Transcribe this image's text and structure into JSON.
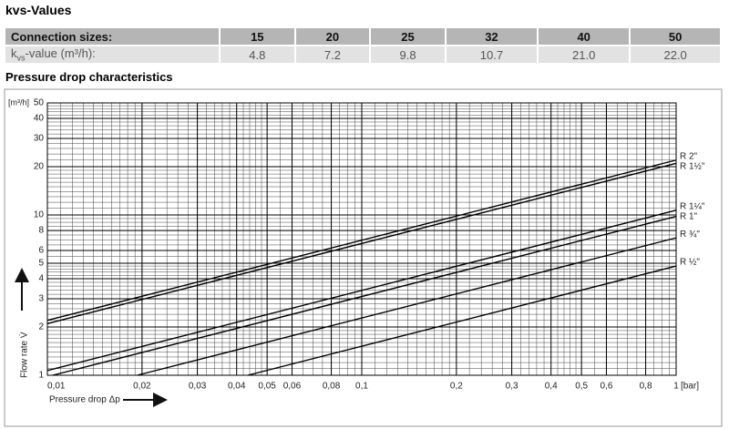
{
  "title": "kvs-Values",
  "table": {
    "header": [
      "Connection sizes:",
      "15",
      "20",
      "25",
      "32",
      "40",
      "50"
    ],
    "rows": [
      [
        [
          "k",
          "vs",
          "-value (m³/h):"
        ],
        "4.8",
        "7.2",
        "9.8",
        "10.7",
        "21.0",
        "22.0"
      ]
    ]
  },
  "section_title": "Pressure drop characteristics",
  "chart_data": {
    "type": "line",
    "x_label": "Pressure drop Δp",
    "y_label": "Flow rate V̇",
    "x_unit": "[bar]",
    "y_unit": "[m³/h]",
    "xscale": "log",
    "yscale": "log",
    "xlim": [
      0.01,
      1
    ],
    "ylim": [
      1,
      50
    ],
    "xticks": [
      {
        "value": 0.01,
        "label": "0,01"
      },
      {
        "value": 0.02,
        "label": "0,02"
      },
      {
        "value": 0.03,
        "label": "0,03"
      },
      {
        "value": 0.04,
        "label": "0,04"
      },
      {
        "value": 0.05,
        "label": "0,05"
      },
      {
        "value": 0.06,
        "label": "0,06"
      },
      {
        "value": 0.08,
        "label": "0,08"
      },
      {
        "value": 0.1,
        "label": "0,1"
      },
      {
        "value": 0.2,
        "label": "0,2"
      },
      {
        "value": 0.3,
        "label": "0,3"
      },
      {
        "value": 0.4,
        "label": "0,4"
      },
      {
        "value": 0.5,
        "label": "0,5"
      },
      {
        "value": 0.6,
        "label": "0,6"
      },
      {
        "value": 0.8,
        "label": "0,8"
      },
      1
    ],
    "yticks": [
      1,
      2,
      3,
      4,
      5,
      6,
      8,
      10,
      20,
      30,
      40,
      50
    ],
    "grid": true,
    "series": [
      {
        "name": "R 2\"",
        "color": "#000000",
        "x": [
          0.01,
          1
        ],
        "values": [
          2.2,
          22
        ]
      },
      {
        "name": "R 1½\"",
        "color": "#000000",
        "x": [
          0.01,
          1
        ],
        "values": [
          2.1,
          21
        ]
      },
      {
        "name": "R 1¼\"",
        "color": "#000000",
        "x": [
          0.01,
          1
        ],
        "values": [
          1.07,
          10.7
        ]
      },
      {
        "name": "R 1\"",
        "color": "#000000",
        "x": [
          0.0104,
          1
        ],
        "values": [
          1,
          9.8
        ]
      },
      {
        "name": "R ¾\"",
        "color": "#000000",
        "x": [
          0.0193,
          1
        ],
        "values": [
          1,
          7.2
        ]
      },
      {
        "name": "R ½\"",
        "color": "#000000",
        "x": [
          0.0434,
          1
        ],
        "values": [
          1,
          4.8
        ]
      }
    ]
  }
}
